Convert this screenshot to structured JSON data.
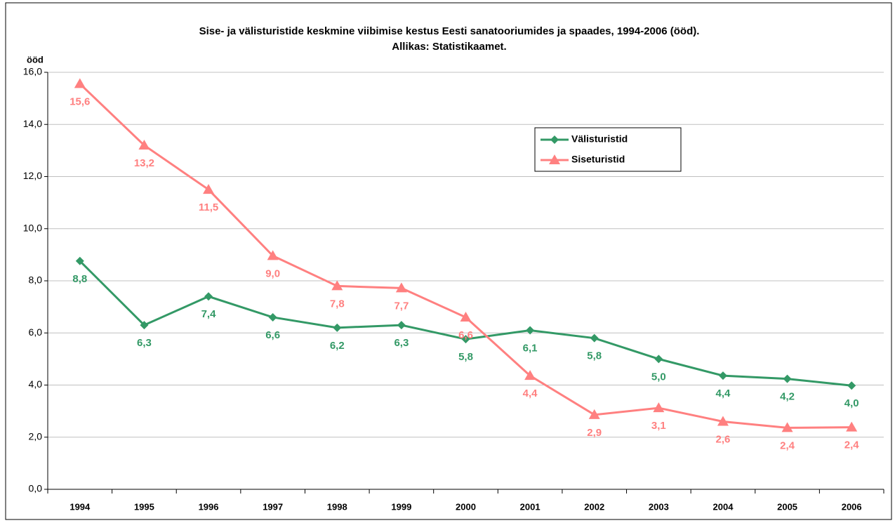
{
  "chart_data": {
    "type": "line",
    "title": "Sise- ja välisturistide keskmine viibimise kestus Eesti sanatooriumides ja spaades, 1994-2006 (ööd).",
    "subtitle": "Allikas: Statistikaamet.",
    "y_axis_label": "ööd",
    "categories": [
      "1994",
      "1995",
      "1996",
      "1997",
      "1998",
      "1999",
      "2000",
      "2001",
      "2002",
      "2003",
      "2004",
      "2005",
      "2006"
    ],
    "series": [
      {
        "name": "Välisturistid",
        "color": "#339966",
        "marker": "diamond",
        "values": [
          8.76,
          6.3,
          7.4,
          6.6,
          6.2,
          6.3,
          5.76,
          6.1,
          5.8,
          5.0,
          4.36,
          4.24,
          3.98
        ],
        "value_labels": [
          "8,8",
          "6,3",
          "7,4",
          "6,6",
          "6,2",
          "6,3",
          "5,8",
          "6,1",
          "5,8",
          "5,0",
          "4,4",
          "4,2",
          "4,0"
        ]
      },
      {
        "name": "Siseturistid",
        "color": "#ff8080",
        "marker": "triangle",
        "values": [
          15.56,
          13.2,
          11.5,
          8.96,
          7.8,
          7.72,
          6.6,
          4.36,
          2.86,
          3.12,
          2.6,
          2.36,
          2.38
        ],
        "value_labels": [
          "15,6",
          "13,2",
          "11,5",
          "9,0",
          "7,8",
          "7,7",
          "6,6",
          "4,4",
          "2,9",
          "3,1",
          "2,6",
          "2,4",
          "2,4"
        ]
      }
    ],
    "ylim": [
      0,
      16
    ],
    "yticks": [
      {
        "value": 0,
        "label": "0,0"
      },
      {
        "value": 2,
        "label": "2,0"
      },
      {
        "value": 4,
        "label": "4,0"
      },
      {
        "value": 6,
        "label": "6,0"
      },
      {
        "value": 8,
        "label": "8,0"
      },
      {
        "value": 10,
        "label": "10,0"
      },
      {
        "value": 12,
        "label": "12,0"
      },
      {
        "value": 14,
        "label": "14,0"
      },
      {
        "value": 16,
        "label": "16,0"
      }
    ],
    "grid": true,
    "legend": "upper-right-inside"
  }
}
